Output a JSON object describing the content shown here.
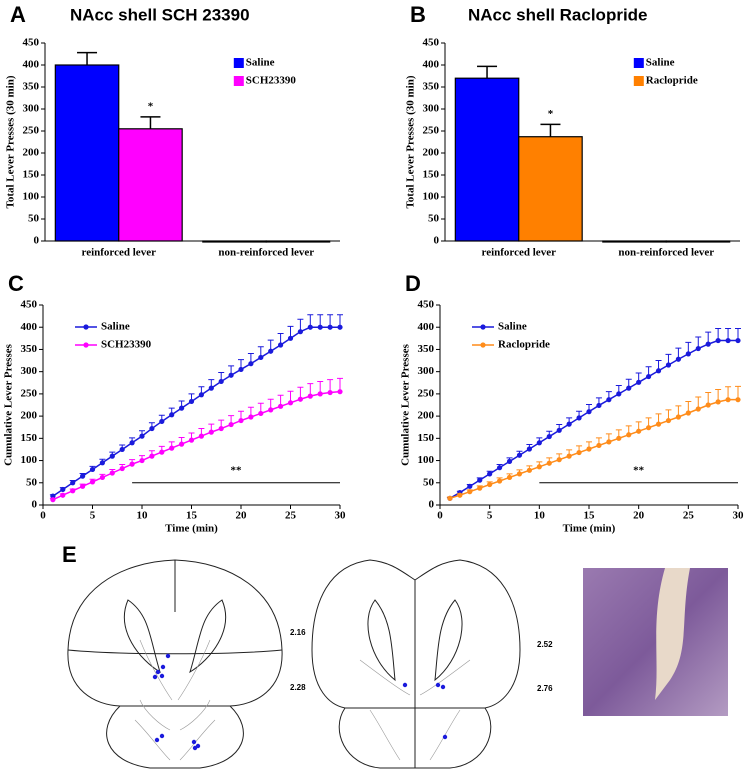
{
  "chart_data": [
    {
      "type": "bar",
      "panel": "A",
      "title": "NAcc shell SCH 23390",
      "ylabel": "Total Lever Presses (30 min)",
      "categories": [
        "reinforced lever",
        "non-reinforced lever"
      ],
      "series": [
        {
          "name": "Saline",
          "color": "#0000ff",
          "values": [
            400,
            0
          ],
          "errors": [
            28,
            0
          ]
        },
        {
          "name": "SCH23390",
          "color": "#ff00ff",
          "values": [
            255,
            0
          ],
          "errors": [
            27,
            0
          ]
        }
      ],
      "annotation": "*",
      "ylim": [
        0,
        450
      ],
      "yticks": [
        0,
        50,
        100,
        150,
        200,
        250,
        300,
        350,
        400,
        450
      ]
    },
    {
      "type": "bar",
      "panel": "B",
      "title": "NAcc shell  Raclopride",
      "ylabel": "Total Lever Presses (30 min)",
      "categories": [
        "reinforced lever",
        "non-reinforced lever"
      ],
      "series": [
        {
          "name": "Saline",
          "color": "#0000ff",
          "values": [
            370,
            0
          ],
          "errors": [
            27,
            0
          ]
        },
        {
          "name": "Raclopride",
          "color": "#ff8000",
          "values": [
            237,
            0
          ],
          "errors": [
            28,
            0
          ]
        }
      ],
      "annotation": "*",
      "ylim": [
        0,
        450
      ],
      "yticks": [
        0,
        50,
        100,
        150,
        200,
        250,
        300,
        350,
        400,
        450
      ]
    },
    {
      "type": "line",
      "panel": "C",
      "ylabel": "Cumulative Lever Presses",
      "xlabel": "Time (min)",
      "x": [
        1,
        2,
        3,
        4,
        5,
        6,
        7,
        8,
        9,
        10,
        11,
        12,
        13,
        14,
        15,
        16,
        17,
        18,
        19,
        20,
        21,
        22,
        23,
        24,
        25,
        26,
        27,
        28,
        29,
        30
      ],
      "series": [
        {
          "name": "Saline",
          "color": "#1a1adc",
          "values": [
            20,
            35,
            50,
            65,
            80,
            95,
            110,
            125,
            140,
            155,
            172,
            188,
            203,
            218,
            233,
            248,
            263,
            278,
            292,
            305,
            318,
            332,
            346,
            360,
            375,
            390,
            400,
            400,
            400,
            400
          ],
          "errors": [
            3,
            4,
            5,
            6,
            7,
            8,
            9,
            10,
            11,
            12,
            13,
            14,
            15,
            16,
            17,
            18,
            19,
            20,
            21,
            22,
            23,
            24,
            25,
            26,
            27,
            28,
            28,
            28,
            28,
            28
          ]
        },
        {
          "name": "SCH23390",
          "color": "#ff00ff",
          "values": [
            12,
            22,
            32,
            42,
            52,
            62,
            72,
            82,
            92,
            100,
            110,
            119,
            128,
            137,
            146,
            155,
            164,
            172,
            181,
            190,
            198,
            206,
            214,
            222,
            230,
            238,
            245,
            250,
            253,
            255
          ],
          "errors": [
            3,
            3,
            4,
            5,
            6,
            7,
            8,
            9,
            10,
            11,
            12,
            13,
            14,
            15,
            16,
            17,
            18,
            19,
            20,
            21,
            22,
            23,
            24,
            25,
            26,
            27,
            28,
            28,
            29,
            30
          ]
        }
      ],
      "significance": {
        "label": "**",
        "x": [
          9,
          30
        ],
        "y": 50
      },
      "xlim": [
        0,
        30
      ],
      "xticks": [
        0,
        5,
        10,
        15,
        20,
        25,
        30
      ],
      "ylim": [
        0,
        450
      ],
      "yticks": [
        0,
        50,
        100,
        150,
        200,
        250,
        300,
        350,
        400,
        450
      ]
    },
    {
      "type": "line",
      "panel": "D",
      "ylabel": "Cumulative Lever Presses",
      "xlabel": "Time (min)",
      "x": [
        1,
        2,
        3,
        4,
        5,
        6,
        7,
        8,
        9,
        10,
        11,
        12,
        13,
        14,
        15,
        16,
        17,
        18,
        19,
        20,
        21,
        22,
        23,
        24,
        25,
        26,
        27,
        28,
        29,
        30
      ],
      "series": [
        {
          "name": "Saline",
          "color": "#1a1adc",
          "values": [
            15,
            28,
            42,
            56,
            70,
            84,
            98,
            112,
            126,
            140,
            154,
            168,
            182,
            196,
            210,
            224,
            237,
            250,
            263,
            276,
            289,
            302,
            315,
            328,
            340,
            352,
            362,
            370,
            370,
            370
          ],
          "errors": [
            2,
            3,
            4,
            5,
            6,
            7,
            8,
            9,
            10,
            11,
            12,
            13,
            14,
            15,
            16,
            17,
            18,
            19,
            20,
            21,
            22,
            23,
            24,
            25,
            26,
            26,
            27,
            27,
            27,
            27
          ]
        },
        {
          "name": "Raclopride",
          "color": "#ff8c1a",
          "values": [
            15,
            22,
            30,
            38,
            46,
            54,
            62,
            70,
            78,
            86,
            94,
            102,
            110,
            118,
            126,
            134,
            142,
            150,
            158,
            166,
            174,
            182,
            190,
            198,
            207,
            216,
            225,
            232,
            237,
            237
          ],
          "errors": [
            3,
            3,
            4,
            5,
            6,
            7,
            8,
            9,
            10,
            11,
            12,
            13,
            14,
            15,
            16,
            17,
            18,
            19,
            20,
            21,
            22,
            23,
            24,
            25,
            26,
            27,
            28,
            28,
            29,
            30
          ]
        }
      ],
      "significance": {
        "label": "**",
        "x": [
          10,
          30
        ],
        "y": 50
      },
      "xlim": [
        0,
        30
      ],
      "xticks": [
        0,
        5,
        10,
        15,
        20,
        25,
        30
      ],
      "ylim": [
        0,
        450
      ],
      "yticks": [
        0,
        50,
        100,
        150,
        200,
        250,
        300,
        350,
        400,
        450
      ]
    }
  ],
  "panel_e": {
    "label": "E",
    "levels": [
      "2.16",
      "2.28",
      "2.52",
      "2.76"
    ]
  }
}
